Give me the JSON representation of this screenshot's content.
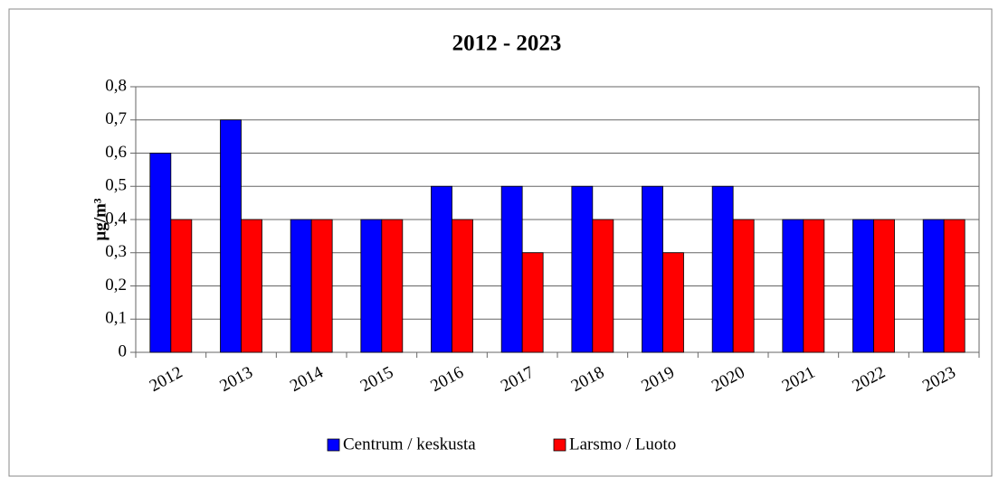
{
  "chart_data": {
    "type": "bar",
    "title": "2012 - 2023",
    "y_label": "µg/m³",
    "categories": [
      "2012",
      "2013",
      "2014",
      "2015",
      "2016",
      "2017",
      "2018",
      "2019",
      "2020",
      "2021",
      "2022",
      "2023"
    ],
    "series": [
      {
        "name": "Centrum / keskusta",
        "color": "#0000ff",
        "values": [
          0.6,
          0.7,
          0.4,
          0.4,
          0.5,
          0.5,
          0.5,
          0.5,
          0.5,
          0.4,
          0.4,
          0.4
        ]
      },
      {
        "name": "Larsmo / Luoto",
        "color": "#ff0000",
        "values": [
          0.4,
          0.4,
          0.4,
          0.4,
          0.4,
          0.3,
          0.4,
          0.3,
          0.4,
          0.4,
          0.4,
          0.4
        ]
      }
    ],
    "ylim": [
      0,
      0.8
    ],
    "yticks": [
      0,
      {
        "value": 0.1,
        "label": "0,1"
      },
      {
        "value": 0.2,
        "label": "0,2"
      },
      {
        "value": 0.3,
        "label": "0,3"
      },
      {
        "value": 0.4,
        "label": "0,4"
      },
      {
        "value": 0.5,
        "label": "0,5"
      },
      {
        "value": 0.6,
        "label": "0,6"
      },
      {
        "value": 0.7,
        "label": "0,7"
      },
      {
        "value": 0.8,
        "label": "0,8"
      }
    ],
    "grid": true,
    "legend": "bottom"
  }
}
